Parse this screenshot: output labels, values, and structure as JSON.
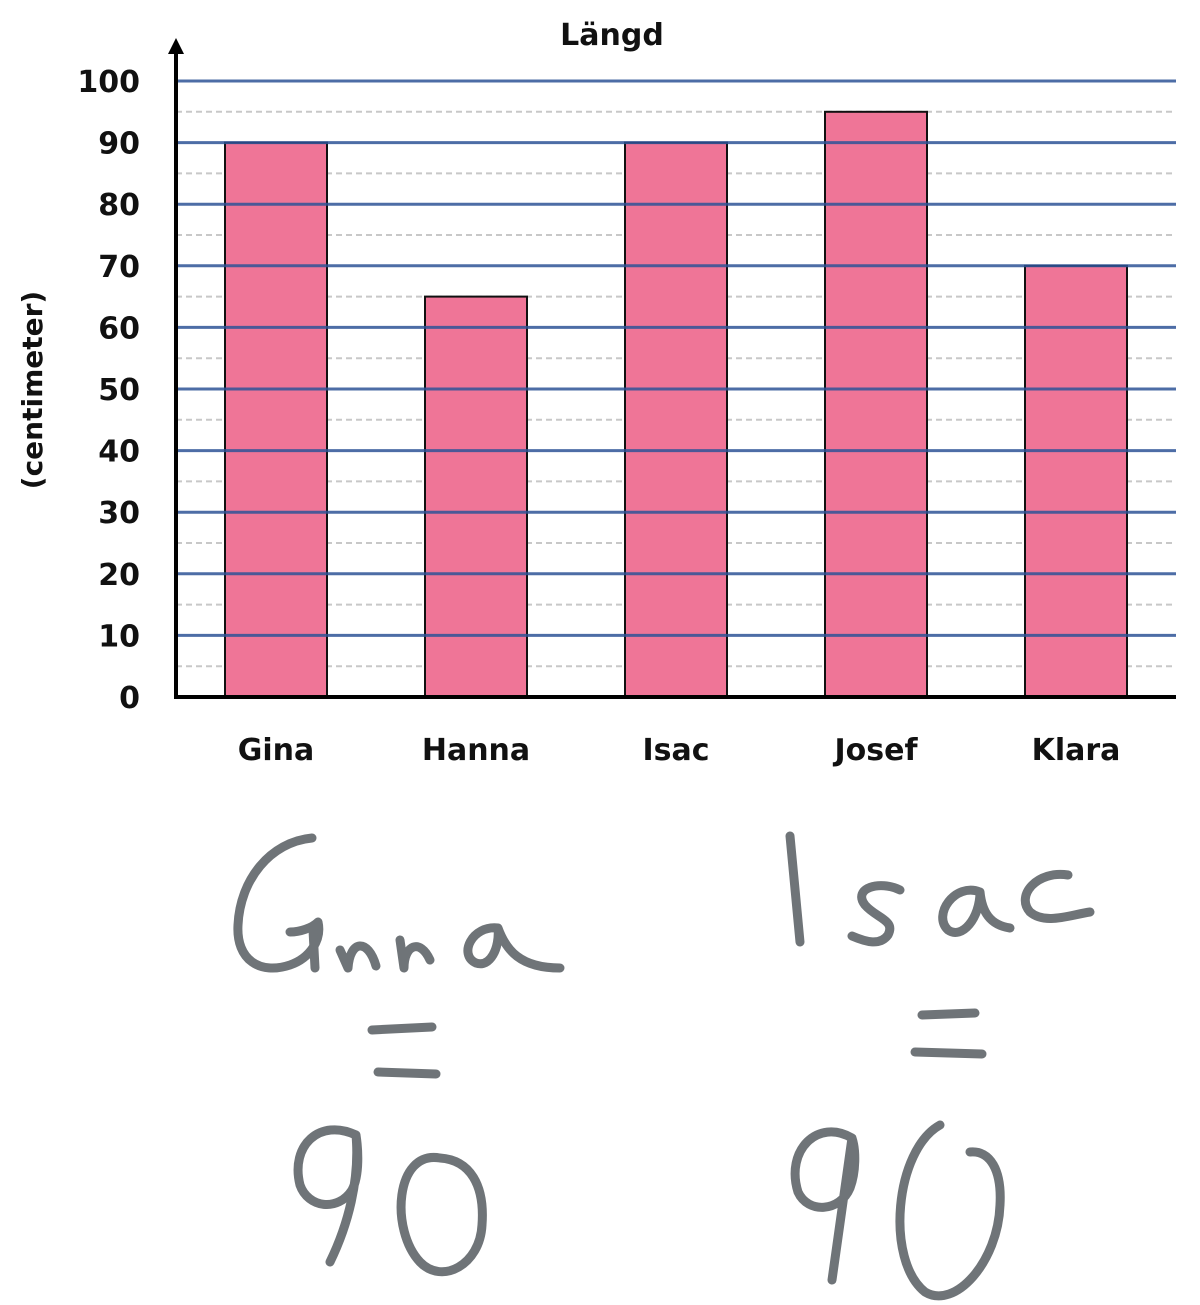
{
  "chart_data": {
    "type": "bar",
    "title": "Längd",
    "xlabel": "",
    "ylabel": "(centimeter)",
    "categories": [
      "Gina",
      "Hanna",
      "Isac",
      "Josef",
      "Klara"
    ],
    "values": [
      90,
      65,
      90,
      95,
      70
    ],
    "ylim": [
      0,
      100
    ],
    "yticks": [
      0,
      10,
      20,
      30,
      40,
      50,
      60,
      70,
      80,
      90,
      100
    ],
    "grid": true,
    "colors": {
      "bar": "#ef7597",
      "major_grid": "#2e5496",
      "minor_grid": "#c8c8c8"
    }
  },
  "handwriting": {
    "left_name": "Gina",
    "left_equals": "=",
    "left_value": "90",
    "right_name": "Isac",
    "right_equals": "=",
    "right_value": "90",
    "color": "#6f7478"
  }
}
